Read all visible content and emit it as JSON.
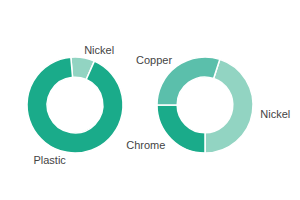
{
  "chart_data": [
    {
      "type": "donut",
      "categories": [
        "Nickel",
        "Plastic"
      ],
      "values": [
        8,
        92
      ],
      "colors": [
        "#92d4c2",
        "#1aab8a"
      ]
    },
    {
      "type": "donut",
      "categories": [
        "Nickel",
        "Chrome",
        "Copper"
      ],
      "values": [
        45,
        25,
        30
      ],
      "colors": [
        "#92d4c2",
        "#1aab8a",
        "#5bbfab"
      ]
    }
  ]
}
